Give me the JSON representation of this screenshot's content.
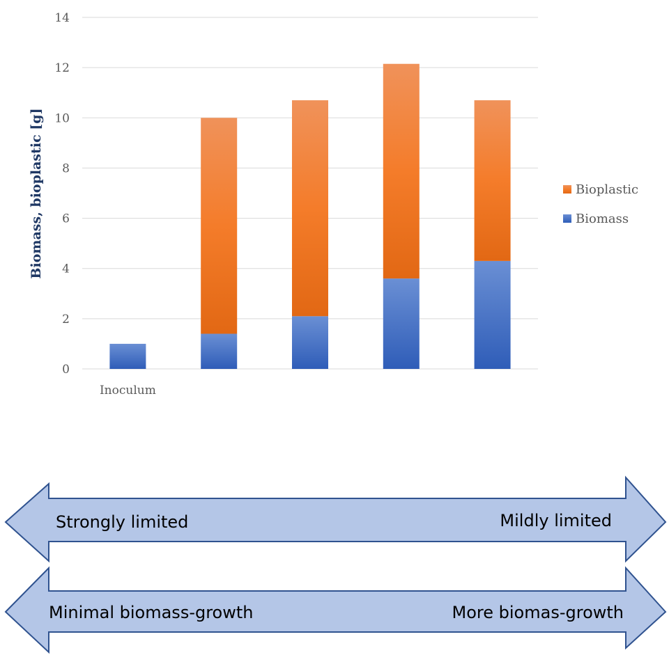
{
  "chart_data": {
    "type": "bar",
    "stacked": true,
    "categories": [
      "Inoculum",
      "",
      "",
      "",
      ""
    ],
    "series": [
      {
        "name": "Biomass",
        "values": [
          1.0,
          1.4,
          2.1,
          3.6,
          4.3
        ],
        "color": "#4472c4"
      },
      {
        "name": "Bioplastic",
        "values": [
          0,
          8.6,
          8.6,
          8.55,
          6.4
        ],
        "color": "#ed7d31"
      }
    ],
    "ylabel": "Biomass, bioplastic [g]",
    "xlabel": "",
    "ylim": [
      0,
      14
    ],
    "yticks": [
      0,
      2,
      4,
      6,
      8,
      10,
      12,
      14
    ],
    "grid": true,
    "legend": "right"
  },
  "arrows": [
    {
      "left_label": "Strongly limited",
      "right_label": "Mildly limited"
    },
    {
      "left_label": "Minimal biomass-growth",
      "right_label": "More biomas-growth"
    }
  ],
  "colors": {
    "arrow_fill": "#b4c6e7",
    "arrow_stroke": "#2f528f"
  }
}
